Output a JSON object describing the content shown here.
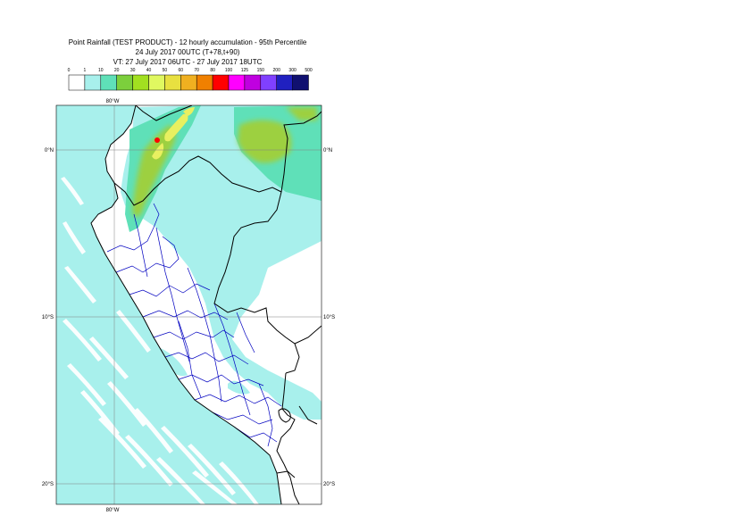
{
  "title": {
    "line1": "Point Rainfall (TEST PRODUCT) - 12 hourly accumulation - 95th Percentile",
    "line2": "24 July 2017 00UTC (T+78,t+90)",
    "line3": "VT: 27 July 2017 06UTC - 27 July 2017 18UTC"
  },
  "legend": {
    "thresholds": [
      "0",
      "1",
      "10",
      "20",
      "30",
      "40",
      "50",
      "60",
      "70",
      "80",
      "100",
      "125",
      "150",
      "200",
      "300",
      "500"
    ],
    "colors": [
      "#ffffff",
      "#a8f0ec",
      "#5fe0b8",
      "#7ccf3c",
      "#a2e020",
      "#e0f860",
      "#e8e040",
      "#f0b020",
      "#f08000",
      "#ff0000",
      "#ff00ff",
      "#c000e0",
      "#8040ff",
      "#2020c0",
      "#101070"
    ]
  },
  "axes": {
    "lon_label_top": "80°W",
    "lon_label_bottom": "80°W",
    "lat_labels": [
      {
        "left": "0°N",
        "right": "0°N"
      },
      {
        "left": "10°S",
        "right": "10°S"
      },
      {
        "left": "20°S",
        "right": "20°S"
      }
    ]
  },
  "map": {
    "ocean_color": "#a8f0ec",
    "land_color": "#ffffff",
    "wet_color": "#5fe0b8",
    "moderate_color": "#9dd040",
    "heavy_color": "#e8f060",
    "extreme_color": "#ff0000",
    "coast_color": "#000000",
    "region_border_color": "#0000c0"
  }
}
